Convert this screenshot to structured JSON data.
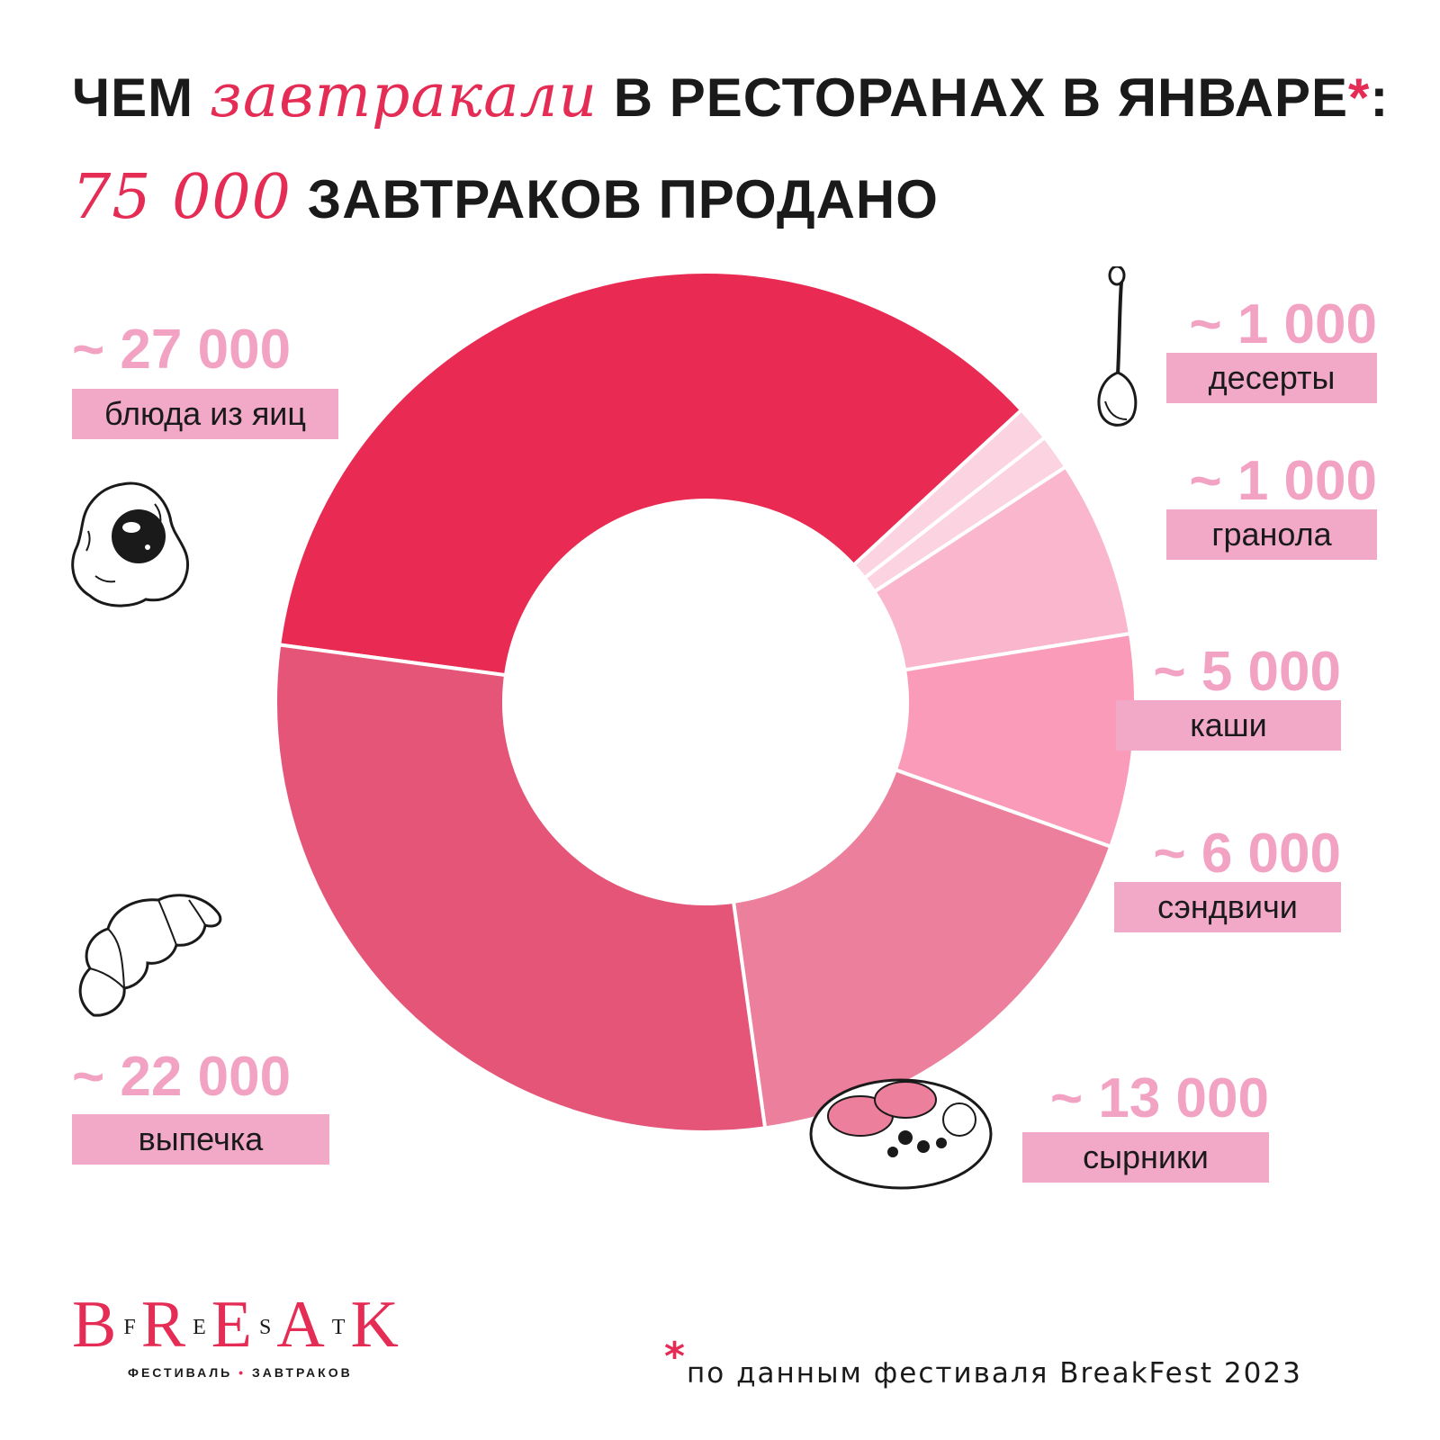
{
  "header": {
    "title_part1": "ЧЕМ ",
    "title_script": "завтракали",
    "title_part2": " В РЕСТОРАНАХ В ЯНВАРЕ",
    "asterisk": "*",
    "colon": ":",
    "subtitle_number": "75 000",
    "subtitle_text": " ЗАВТРАКОВ ПРОДАНО"
  },
  "chart_data": {
    "type": "pie",
    "donut": true,
    "title": "ЧЕМ завтракали В РЕСТОРАНАХ В ЯНВАРЕ*:",
    "total": "75 000 ЗАВТРАКОВ ПРОДАНО",
    "slices": [
      {
        "label": "блюда из яиц",
        "value": 27000,
        "display": "~ 27 000",
        "color": "#e92a52"
      },
      {
        "label": "десерты",
        "value": 1000,
        "display": "~ 1 000",
        "color": "#fcd3e0"
      },
      {
        "label": "гранола",
        "value": 1000,
        "display": "~ 1 000",
        "color": "#fcd3e0"
      },
      {
        "label": "каши",
        "value": 5000,
        "display": "~ 5 000",
        "color": "#f9b6cc"
      },
      {
        "label": "сэндвичи",
        "value": 6000,
        "display": "~ 6 000",
        "color": "#fa9bb9"
      },
      {
        "label": "сырники",
        "value": 13000,
        "display": "~ 13 000",
        "color": "#ec7f9c"
      },
      {
        "label": "выпечка",
        "value": 22000,
        "display": "~ 22 000",
        "color": "#e45578"
      }
    ]
  },
  "icons": {
    "egg": "fried-egg-icon",
    "spoon": "spoon-icon",
    "croissant": "croissant-icon",
    "plate": "syrniki-plate-icon"
  },
  "logo": {
    "letters": [
      "B",
      "F",
      "R",
      "E",
      "E",
      "S",
      "A",
      "T",
      "K"
    ],
    "tagline_left": "ФЕСТИВАЛЬ",
    "tagline_dot": "•",
    "tagline_right": "ЗАВТРАКОВ"
  },
  "footnote": {
    "asterisk": "*",
    "text": "по данным фестиваля BreakFest 2023"
  },
  "colors": {
    "accent": "#e42c54",
    "label_bg": "#f2a9c7",
    "label_value": "#f2a3c3"
  }
}
